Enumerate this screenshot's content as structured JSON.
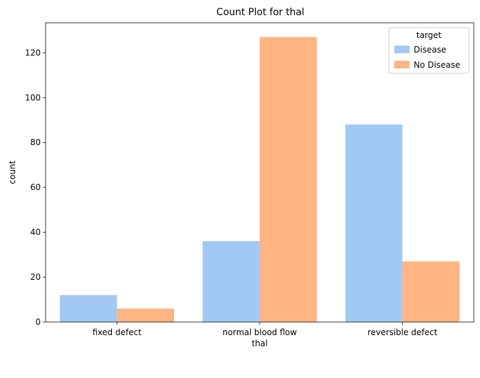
{
  "chart_data": {
    "type": "bar",
    "title": "Count Plot for thal",
    "xlabel": "thal",
    "ylabel": "count",
    "categories": [
      "fixed defect",
      "normal blood flow",
      "reversible defect"
    ],
    "series": [
      {
        "name": "Disease",
        "values": [
          12,
          36,
          88
        ]
      },
      {
        "name": "No Disease",
        "values": [
          6,
          127,
          27
        ]
      }
    ],
    "ylim": [
      0,
      133.35
    ],
    "yticks": [
      0,
      20,
      40,
      60,
      80,
      100,
      120
    ],
    "legend": {
      "title": "target",
      "placement": "top-right"
    },
    "colors": {
      "Disease": "#a1c9f4",
      "No Disease": "#ffb482"
    },
    "grid": false
  }
}
